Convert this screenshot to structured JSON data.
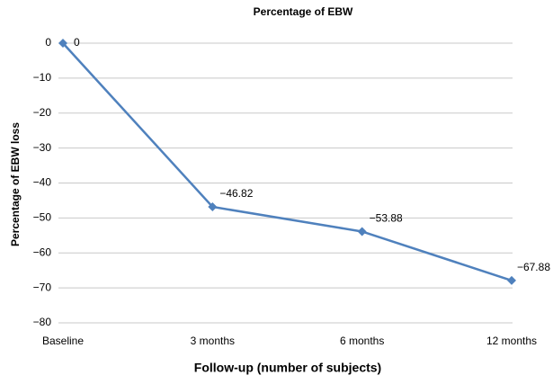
{
  "chart_data": {
    "type": "line",
    "title": "Percentage of EBW",
    "y_label": "Percentage of EBW loss",
    "x_label": "Follow-up (number of subjects)",
    "categories": [
      "Baseline",
      "3 months",
      "6 months",
      "12 months"
    ],
    "values": [
      0,
      -46.82,
      -53.88,
      -67.88
    ],
    "value_labels": [
      "0",
      "−46.82",
      "−53.88",
      "−67.88"
    ],
    "color": "#4f81bd",
    "ylim": [
      -80,
      0
    ],
    "yticks": [
      {
        "value": -80,
        "label": "−80"
      },
      {
        "value": -70,
        "label": "−70"
      },
      {
        "value": -60,
        "label": "−60"
      },
      {
        "value": -50,
        "label": "−50"
      },
      {
        "value": -40,
        "label": "−40"
      },
      {
        "value": -30,
        "label": "−30"
      },
      {
        "value": -20,
        "label": "−20"
      },
      {
        "value": -10,
        "label": "−10"
      },
      0
    ],
    "grid": true
  }
}
